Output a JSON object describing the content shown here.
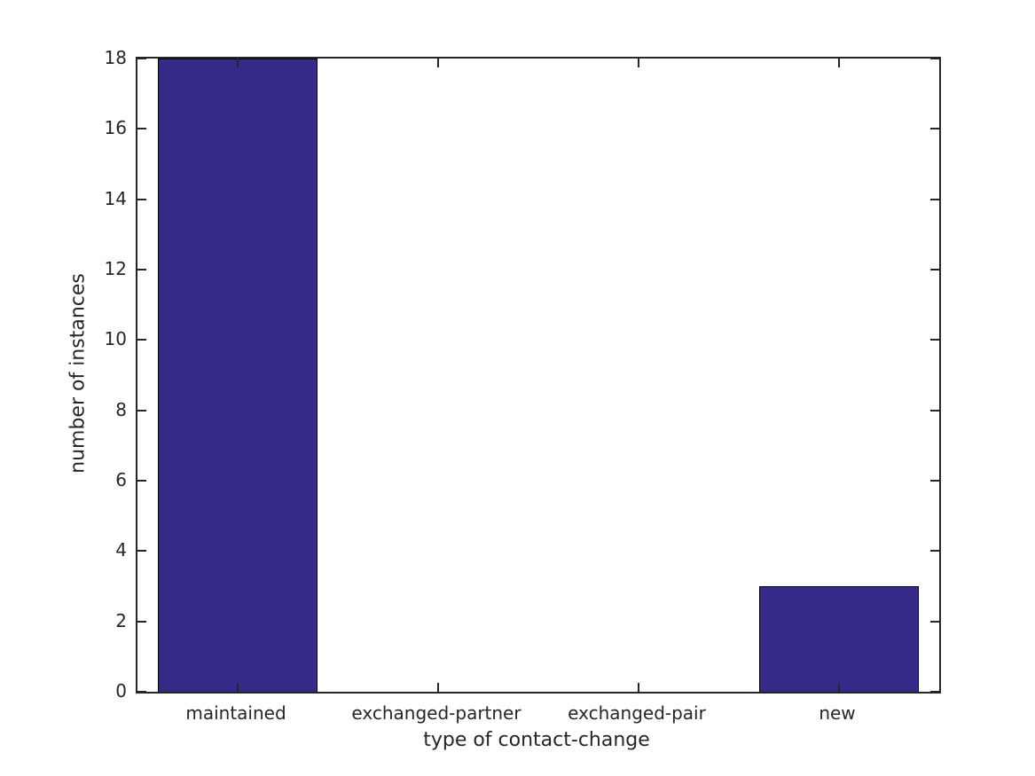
{
  "chart_data": {
    "type": "bar",
    "categories": [
      "maintained",
      "exchanged-partner",
      "exchanged-pair",
      "new"
    ],
    "values": [
      18,
      0,
      0,
      3
    ],
    "title": "",
    "xlabel": "type of contact-change",
    "ylabel": "number of instances",
    "ylim": [
      0,
      18
    ],
    "yticks": [
      0,
      2,
      4,
      6,
      8,
      10,
      12,
      14,
      16,
      18
    ],
    "grid": false,
    "legend_position": "none",
    "bar_width_ratio": 0.8,
    "colors": {
      "bar_fill": "#352A87",
      "bar_edge": "#000000",
      "axis": "#262626",
      "text": "#262626",
      "background": "#FFFFFF"
    }
  }
}
